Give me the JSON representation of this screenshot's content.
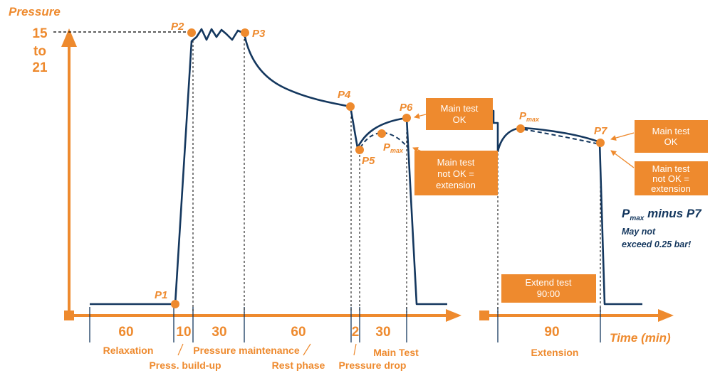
{
  "axis": {
    "y_title": "Pressure",
    "y_value_top": "15",
    "y_value_mid": "to",
    "y_value_bottom": "21",
    "x_title": "Time (min)"
  },
  "points": {
    "p1": "P1",
    "p2": "P2",
    "p3": "P3",
    "p4": "P4",
    "p5": "P5",
    "p6": "P6",
    "p7": "P7",
    "pmax1_main": "P",
    "pmax1_sub": "max",
    "pmax2_main": "P",
    "pmax2_sub": "max"
  },
  "durations": [
    "60",
    "10",
    "30",
    "60",
    "2",
    "30",
    "90"
  ],
  "phases": {
    "relaxation": "Relaxation",
    "press_buildup": "Press. build-up",
    "pressure_maintenance": "Pressure maintenance",
    "rest_phase": "Rest phase",
    "pressure_drop": "Pressure drop",
    "main_test": "Main Test",
    "extension": "Extension"
  },
  "boxes": {
    "main_ok_1": [
      "Main test",
      "OK"
    ],
    "main_not_ok_1": [
      "Main test",
      "not OK =",
      "extension"
    ],
    "main_ok_2": [
      "Main test",
      "OK"
    ],
    "main_not_ok_2": [
      "Main test",
      "not OK =",
      "extension"
    ],
    "extend": [
      "Extend test",
      "90:00"
    ]
  },
  "note": {
    "p_main": "P",
    "p_sub": "max",
    "rest": " minus P7",
    "line1": "May not",
    "line2": "exceed 0.25 bar!"
  },
  "colors": {
    "accent": "#ee8a2e",
    "curve": "#14375e"
  }
}
